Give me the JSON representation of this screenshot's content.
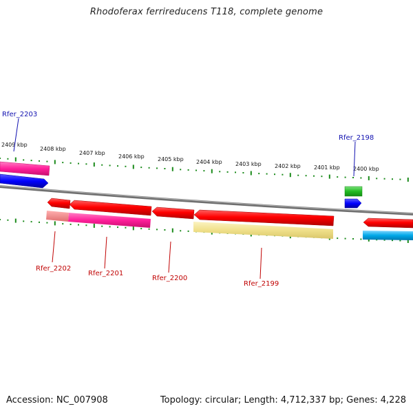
{
  "title": "Rhodoferax ferrireducens T118, complete genome",
  "footer": {
    "accession": "Accession: NC_007908",
    "summary": "Topology: circular; Length: 4,712,337 bp; Genes: 4,228"
  },
  "ruler": {
    "labels": [
      "2409 kbp",
      "2408 kbp",
      "2407 kbp",
      "2406 kbp",
      "2405 kbp",
      "2404 kbp",
      "2403 kbp",
      "2402 kbp",
      "2401 kbp",
      "2400 kbp"
    ]
  },
  "gene_labels_forward": [
    "Rfer_2203",
    "Rfer_2198"
  ],
  "gene_labels_reverse": [
    "Rfer_2202",
    "Rfer_2201",
    "Rfer_2200",
    "Rfer_2199"
  ],
  "colors": {
    "backbone": "#8a8a8a",
    "tick": "#1a8a1a",
    "cds": "#ff0000",
    "pink": "#ff1f9a",
    "blue": "#0000ff",
    "green": "#22bb22",
    "yellow": "#f0e08a",
    "cyan": "#00a8e8"
  }
}
